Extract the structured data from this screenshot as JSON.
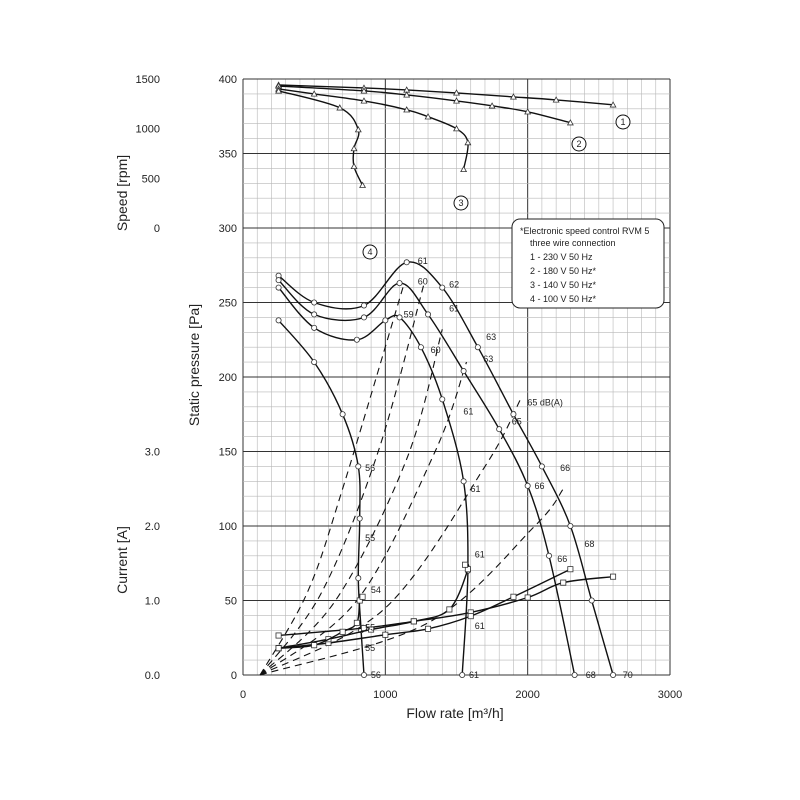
{
  "chart_data": {
    "type": "line",
    "xlabel": "Flow rate [m³/h]",
    "x_ticks": [
      "0",
      "1000",
      "2000",
      "3000"
    ],
    "xlim": [
      0,
      3000
    ],
    "grid": true,
    "speed_axis": {
      "label": "Speed [rpm]",
      "pressure_ticks": [
        "1500",
        "1000",
        "500",
        "0"
      ],
      "range_rpm": [
        0,
        1500
      ],
      "series": [
        {
          "name": "1",
          "x": [
            250,
            850,
            1150,
            1500,
            1900,
            2200,
            2600
          ],
          "y": [
            1440,
            1410,
            1390,
            1360,
            1320,
            1290,
            1240
          ]
        },
        {
          "name": "2",
          "x": [
            250,
            850,
            1150,
            1500,
            1750,
            2000,
            2300
          ],
          "y": [
            1430,
            1380,
            1340,
            1280,
            1230,
            1170,
            1060
          ]
        },
        {
          "name": "3",
          "x": [
            250,
            500,
            850,
            1150,
            1300,
            1500,
            1580,
            1550
          ],
          "y": [
            1400,
            1350,
            1280,
            1190,
            1120,
            1000,
            860,
            590
          ]
        },
        {
          "name": "4",
          "x": [
            250,
            680,
            810,
            780,
            780,
            840
          ],
          "y": [
            1380,
            1210,
            990,
            800,
            620,
            430
          ]
        }
      ]
    },
    "pressure_axis": {
      "label": "Static pressure [Pa]",
      "ticks": [
        "50",
        "100",
        "150",
        "200",
        "250",
        "300",
        "350",
        "400"
      ],
      "range_pa": [
        0,
        400
      ],
      "series": [
        {
          "name": "1",
          "x": [
            250,
            500,
            850,
            1150,
            1400,
            1650,
            1900,
            2100,
            2300,
            2450,
            2600
          ],
          "y": [
            268,
            250,
            248,
            277,
            260,
            220,
            175,
            140,
            100,
            50,
            0
          ]
        },
        {
          "name": "2",
          "x": [
            250,
            500,
            850,
            1100,
            1300,
            1550,
            1800,
            2000,
            2150,
            2330
          ],
          "y": [
            265,
            242,
            240,
            263,
            242,
            204,
            165,
            127,
            80,
            0
          ]
        },
        {
          "name": "3",
          "x": [
            250,
            500,
            800,
            1000,
            1100,
            1250,
            1400,
            1550,
            1580,
            1540
          ],
          "y": [
            260,
            233,
            225,
            238,
            240,
            220,
            185,
            130,
            70,
            0
          ]
        },
        {
          "name": "4",
          "x": [
            250,
            500,
            700,
            810,
            820,
            810,
            830,
            850
          ],
          "y": [
            238,
            210,
            175,
            140,
            105,
            65,
            30,
            0
          ]
        }
      ],
      "iso_sound_lines": [
        {
          "label": "56",
          "x": [
            120,
            450,
            700,
            1130
          ],
          "y": [
            0,
            55,
            125,
            262
          ]
        },
        {
          "label": "55",
          "x": [
            120,
            550,
            950,
            1270
          ],
          "y": [
            0,
            55,
            150,
            262
          ]
        },
        {
          "label": "54",
          "x": [
            120,
            650,
            1150,
            1400
          ],
          "y": [
            0,
            50,
            145,
            232
          ]
        },
        {
          "label": "60",
          "x": [
            120,
            800,
            1350,
            1570
          ],
          "y": [
            0,
            50,
            150,
            210
          ]
        },
        {
          "label": "61",
          "x": [
            120,
            1000,
            1700,
            1950
          ],
          "y": [
            0,
            45,
            140,
            185
          ]
        },
        {
          "label": "63",
          "x": [
            120,
            1300,
            2050,
            2250
          ],
          "y": [
            0,
            35,
            100,
            125
          ]
        }
      ],
      "point_labels": [
        {
          "text": "61",
          "x": 1200,
          "y": 278
        },
        {
          "text": "60",
          "x": 1200,
          "y": 264
        },
        {
          "text": "62",
          "x": 1420,
          "y": 262
        },
        {
          "text": "59",
          "x": 1100,
          "y": 242
        },
        {
          "text": "61",
          "x": 1420,
          "y": 246
        },
        {
          "text": "60",
          "x": 1290,
          "y": 218
        },
        {
          "text": "63",
          "x": 1680,
          "y": 227
        },
        {
          "text": "63",
          "x": 1660,
          "y": 212
        },
        {
          "text": "61",
          "x": 1520,
          "y": 177
        },
        {
          "text": "65 dB(A)",
          "x": 1970,
          "y": 183
        },
        {
          "text": "65",
          "x": 1860,
          "y": 170
        },
        {
          "text": "56",
          "x": 830,
          "y": 139
        },
        {
          "text": "61",
          "x": 1570,
          "y": 125
        },
        {
          "text": "66",
          "x": 2200,
          "y": 139
        },
        {
          "text": "66",
          "x": 2020,
          "y": 127
        },
        {
          "text": "55",
          "x": 830,
          "y": 92
        },
        {
          "text": "61",
          "x": 1600,
          "y": 81
        },
        {
          "text": "68",
          "x": 2370,
          "y": 88
        },
        {
          "text": "66",
          "x": 2180,
          "y": 78
        },
        {
          "text": "54",
          "x": 870,
          "y": 57
        },
        {
          "text": "55",
          "x": 830,
          "y": 32
        },
        {
          "text": "61",
          "x": 1600,
          "y": 33
        },
        {
          "text": "55",
          "x": 830,
          "y": 18
        },
        {
          "text": "56",
          "x": 870,
          "y": 0
        },
        {
          "text": "61",
          "x": 1560,
          "y": 0
        },
        {
          "text": "68",
          "x": 2380,
          "y": 0
        },
        {
          "text": "70",
          "x": 2640,
          "y": 0
        }
      ]
    },
    "current_axis": {
      "label": "Current [A]",
      "ticks": [
        "0.0",
        "1.0",
        "2.0",
        "3.0"
      ],
      "range_a": [
        0,
        3
      ],
      "series": [
        {
          "name": "1",
          "x": [
            250,
            850,
            1200,
            1600,
            2000,
            2250,
            2600
          ],
          "y": [
            0.53,
            0.63,
            0.72,
            0.84,
            1.04,
            1.24,
            1.32
          ]
        },
        {
          "name": "2",
          "x": [
            250,
            600,
            1000,
            1300,
            1600,
            1900,
            2300
          ],
          "y": [
            0.36,
            0.43,
            0.54,
            0.62,
            0.79,
            1.05,
            1.42
          ]
        },
        {
          "name": "3",
          "x": [
            250,
            600,
            900,
            1200,
            1450,
            1580,
            1560
          ],
          "y": [
            0.36,
            0.48,
            0.61,
            0.72,
            0.88,
            1.42,
            1.48
          ]
        },
        {
          "name": "4",
          "x": [
            250,
            500,
            700,
            800,
            820,
            840
          ],
          "y": [
            0.36,
            0.4,
            0.58,
            0.7,
            1.0,
            1.05
          ]
        }
      ]
    },
    "curve_numbers": [
      "1",
      "2",
      "3",
      "4"
    ],
    "legend": {
      "title_line1": "*Electronic speed control RVM 5",
      "title_line2": "three wire connection",
      "items": [
        "1 - 230 V 50 Hz",
        "2 - 180 V 50 Hz*",
        "3 - 140 V 50 Hz*",
        "4 - 100 V 50 Hz*"
      ]
    }
  }
}
